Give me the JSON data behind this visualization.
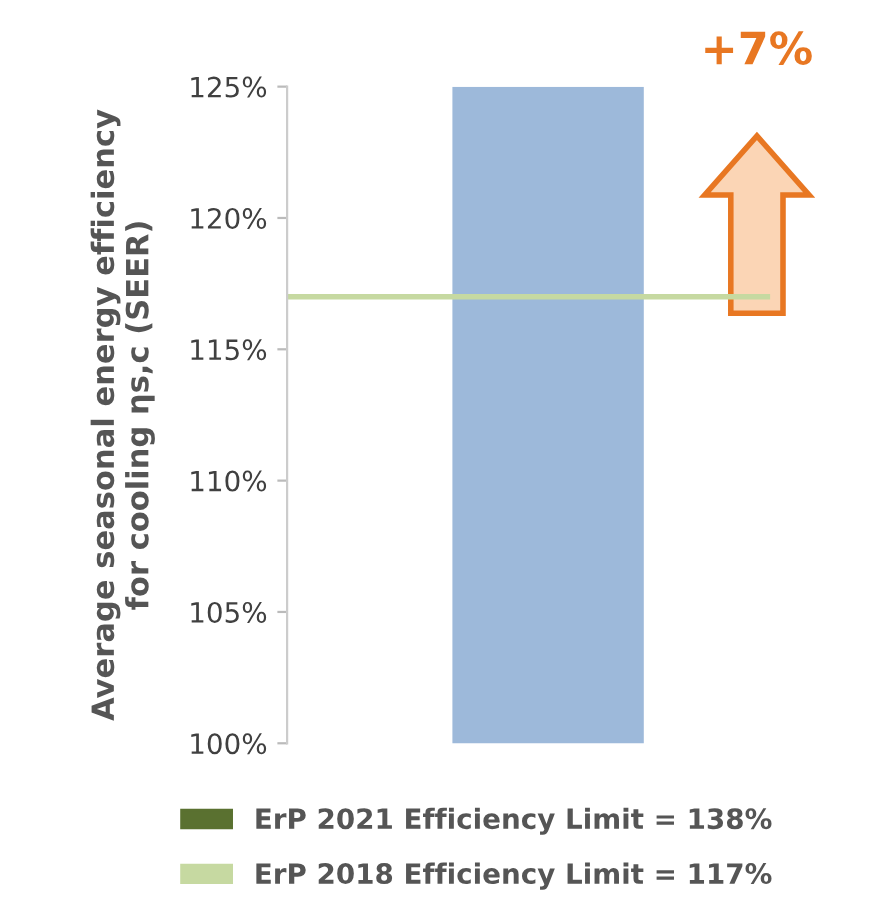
{
  "chart_data": {
    "type": "bar",
    "ylabel": "Average seasonal energy efficiency\nfor cooling ηs,c (SEER)",
    "categories": [
      null
    ],
    "series": [
      {
        "color": "#9db9da",
        "values": [
          125
        ]
      },
      {
        "name": "ErP 2021 Efficiency Limit = 138%",
        "color": "#5a7130",
        "values": [
          null
        ]
      }
    ],
    "ref_lines": [
      {
        "axis": "y",
        "value": 117,
        "label": "ErP 2018 Efficiency Limit = 117%",
        "color": "#c6d9a1"
      }
    ],
    "annotations": [
      "+7%"
    ],
    "ylim": [
      100,
      125
    ],
    "yticks": [
      {
        "value": 100,
        "label": "100%"
      },
      {
        "value": 105,
        "label": "105%"
      },
      {
        "value": 110,
        "label": "110%"
      },
      {
        "value": 115,
        "label": "115%"
      },
      {
        "value": 120,
        "label": "120%"
      },
      {
        "value": 125,
        "label": "125%"
      }
    ],
    "grid": false,
    "legend": "bottom"
  }
}
